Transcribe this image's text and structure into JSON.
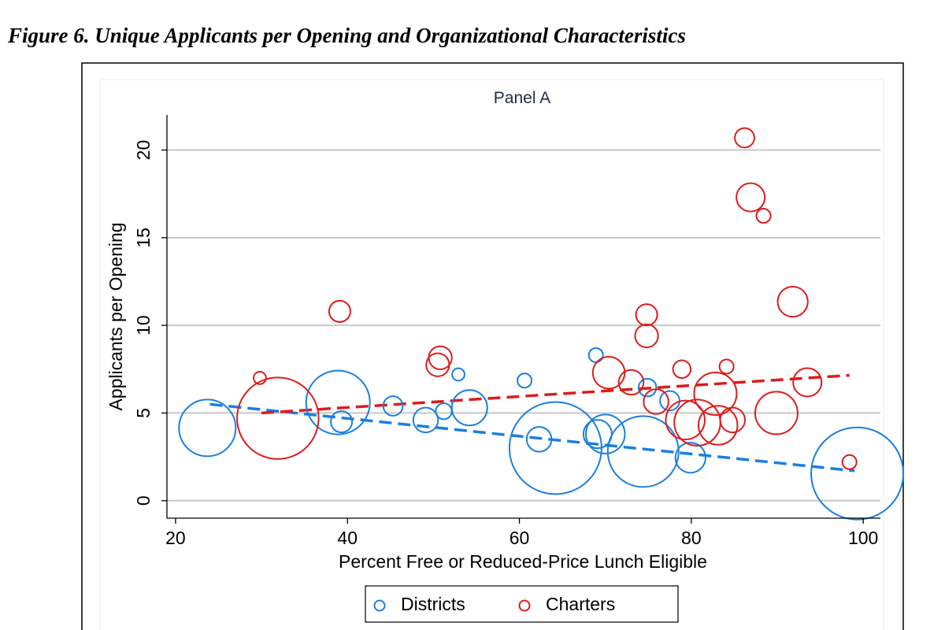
{
  "figure_title": "Figure 6. Unique Applicants per Opening and Organizational Characteristics",
  "colors": {
    "districts": "#1a7fe0",
    "charters": "#dd1c1c",
    "grid": "#c8c8c8",
    "panel_bg": "#ffffff",
    "outer_bg": "#ffffff"
  },
  "chart_data": {
    "type": "scatter",
    "title": "Panel A",
    "xlabel": "Percent Free or Reduced-Price Lunch Eligible",
    "ylabel": "Applicants per Opening",
    "xlim": [
      19,
      102
    ],
    "ylim": [
      -1,
      22
    ],
    "xticks": [
      20,
      40,
      60,
      80,
      100
    ],
    "yticks": [
      0,
      5,
      10,
      15,
      20
    ],
    "grid": "horizontal",
    "legend_position": "bottom-center",
    "series": [
      {
        "name": "Districts",
        "color": "#1a7fe0",
        "points": [
          {
            "x": 23.7,
            "y": 4.15,
            "size": 16
          },
          {
            "x": 38.9,
            "y": 5.6,
            "size": 18
          },
          {
            "x": 39.3,
            "y": 4.5,
            "size": 6
          },
          {
            "x": 45.3,
            "y": 5.4,
            "size": 5.5
          },
          {
            "x": 49.1,
            "y": 4.6,
            "size": 7
          },
          {
            "x": 51.2,
            "y": 5.1,
            "size": 4.5
          },
          {
            "x": 52.9,
            "y": 7.2,
            "size": 3.5
          },
          {
            "x": 54.2,
            "y": 5.3,
            "size": 10
          },
          {
            "x": 60.6,
            "y": 6.85,
            "size": 4
          },
          {
            "x": 62.3,
            "y": 3.5,
            "size": 7
          },
          {
            "x": 64.2,
            "y": 3.0,
            "size": 26
          },
          {
            "x": 68.9,
            "y": 8.3,
            "size": 4
          },
          {
            "x": 69.1,
            "y": 3.8,
            "size": 8
          },
          {
            "x": 70.0,
            "y": 3.8,
            "size": 11
          },
          {
            "x": 74.4,
            "y": 2.8,
            "size": 20
          },
          {
            "x": 74.9,
            "y": 6.45,
            "size": 5
          },
          {
            "x": 77.5,
            "y": 5.7,
            "size": 5.5
          },
          {
            "x": 79.9,
            "y": 2.45,
            "size": 8.5
          },
          {
            "x": 99.3,
            "y": 1.55,
            "size": 26
          }
        ]
      },
      {
        "name": "Charters",
        "color": "#dd1c1c",
        "points": [
          {
            "x": 29.8,
            "y": 7.0,
            "size": 3.5
          },
          {
            "x": 31.9,
            "y": 4.7,
            "size": 23
          },
          {
            "x": 39.1,
            "y": 10.8,
            "size": 6
          },
          {
            "x": 50.5,
            "y": 7.75,
            "size": 6.5
          },
          {
            "x": 50.8,
            "y": 8.15,
            "size": 6.5
          },
          {
            "x": 70.4,
            "y": 7.3,
            "size": 9
          },
          {
            "x": 73.0,
            "y": 6.75,
            "size": 7
          },
          {
            "x": 74.8,
            "y": 10.6,
            "size": 6
          },
          {
            "x": 74.8,
            "y": 9.4,
            "size": 6.5
          },
          {
            "x": 75.9,
            "y": 5.65,
            "size": 7
          },
          {
            "x": 78.9,
            "y": 7.5,
            "size": 5
          },
          {
            "x": 79.3,
            "y": 4.6,
            "size": 11
          },
          {
            "x": 80.7,
            "y": 4.45,
            "size": 13
          },
          {
            "x": 82.8,
            "y": 6.1,
            "size": 12
          },
          {
            "x": 83.1,
            "y": 4.3,
            "size": 11
          },
          {
            "x": 84.1,
            "y": 7.65,
            "size": 4
          },
          {
            "x": 84.8,
            "y": 4.6,
            "size": 7
          },
          {
            "x": 86.2,
            "y": 20.7,
            "size": 5.5
          },
          {
            "x": 86.9,
            "y": 17.3,
            "size": 8
          },
          {
            "x": 88.4,
            "y": 16.25,
            "size": 4
          },
          {
            "x": 89.9,
            "y": 5.0,
            "size": 12
          },
          {
            "x": 91.8,
            "y": 11.35,
            "size": 8.5
          },
          {
            "x": 93.5,
            "y": 6.75,
            "size": 8
          },
          {
            "x": 98.4,
            "y": 2.2,
            "size": 4
          }
        ]
      }
    ],
    "fit_lines": [
      {
        "series": "Districts",
        "x": [
          24,
          99
        ],
        "y": [
          5.5,
          1.7
        ]
      },
      {
        "series": "Charters",
        "x": [
          30,
          98.4
        ],
        "y": [
          5.0,
          7.15
        ]
      }
    ],
    "legend": [
      "Districts",
      "Charters"
    ]
  }
}
